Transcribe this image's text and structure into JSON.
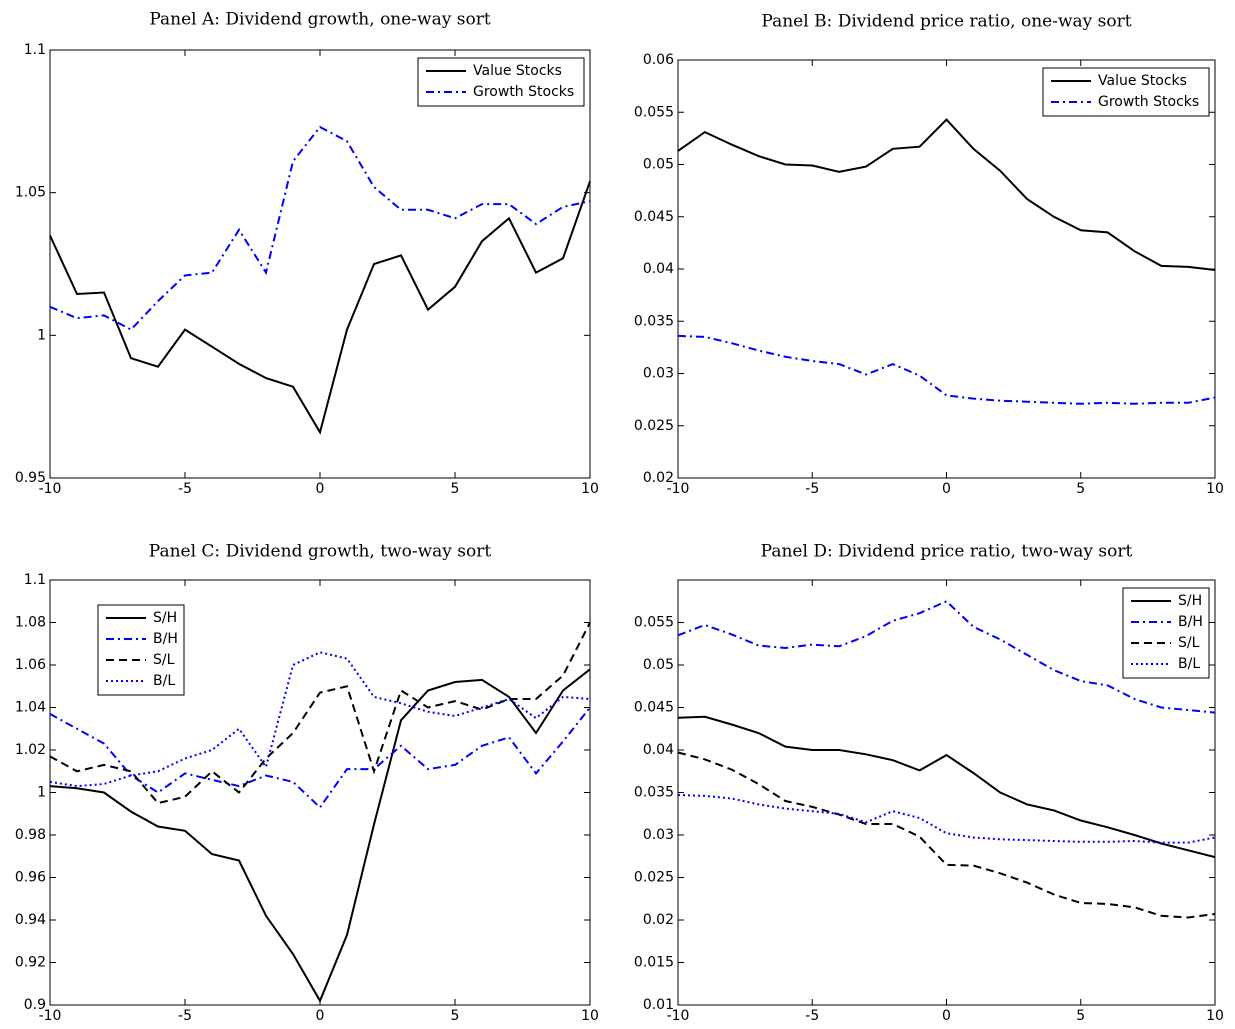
{
  "chart_data": [
    {
      "type": "line",
      "title": "Panel A: Dividend growth, one-way sort",
      "x": [
        -10,
        -9,
        -8,
        -7,
        -6,
        -5,
        -4,
        -3,
        -2,
        -1,
        0,
        1,
        2,
        3,
        4,
        5,
        6,
        7,
        8,
        9,
        10
      ],
      "xlim": [
        -10,
        10
      ],
      "xticks": [
        -10,
        -5,
        0,
        5,
        10
      ],
      "ylim": [
        0.95,
        1.1
      ],
      "yticks": [
        0.95,
        1,
        1.05,
        1.1
      ],
      "legend": "upper right",
      "series": [
        {
          "name": "Value Stocks",
          "color": "#000000",
          "style": "solid",
          "values": [
            1.035,
            1.0145,
            1.015,
            0.992,
            0.989,
            1.002,
            0.996,
            0.99,
            0.985,
            0.982,
            0.966,
            1.002,
            1.025,
            1.028,
            1.009,
            1.017,
            1.033,
            1.041,
            1.022,
            1.027,
            1.054
          ]
        },
        {
          "name": "Growth Stocks",
          "color": "#0000ff",
          "style": "dashdot",
          "values": [
            1.01,
            1.006,
            1.007,
            1.002,
            1.012,
            1.021,
            1.022,
            1.037,
            1.022,
            1.061,
            1.073,
            1.068,
            1.052,
            1.044,
            1.044,
            1.041,
            1.046,
            1.046,
            1.039,
            1.045,
            1.047
          ]
        }
      ]
    },
    {
      "type": "line",
      "title": "Panel B: Dividend price ratio, one-way sort",
      "x": [
        -10,
        -9,
        -8,
        -7,
        -6,
        -5,
        -4,
        -3,
        -2,
        -1,
        0,
        1,
        2,
        3,
        4,
        5,
        6,
        7,
        8,
        9,
        10
      ],
      "xlim": [
        -10,
        10
      ],
      "xticks": [
        -10,
        -5,
        0,
        5,
        10
      ],
      "ylim": [
        0.02,
        0.06
      ],
      "yticks": [
        0.02,
        0.025,
        0.03,
        0.035,
        0.04,
        0.045,
        0.05,
        0.055,
        0.06
      ],
      "legend": "upper right",
      "series": [
        {
          "name": "Value Stocks",
          "color": "#000000",
          "style": "solid",
          "values": [
            0.0513,
            0.0531,
            0.0519,
            0.0508,
            0.05,
            0.0499,
            0.0493,
            0.0498,
            0.0515,
            0.0517,
            0.0543,
            0.0515,
            0.0494,
            0.0467,
            0.045,
            0.0437,
            0.0435,
            0.0417,
            0.0403,
            0.0402,
            0.0399
          ]
        },
        {
          "name": "Growth Stocks",
          "color": "#0000ff",
          "style": "dashdot",
          "values": [
            0.0336,
            0.0335,
            0.0329,
            0.0322,
            0.0316,
            0.0312,
            0.0309,
            0.0299,
            0.0309,
            0.0298,
            0.0279,
            0.0276,
            0.0274,
            0.0273,
            0.0272,
            0.0271,
            0.0272,
            0.0271,
            0.0272,
            0.0272,
            0.0277
          ]
        }
      ]
    },
    {
      "type": "line",
      "title": "Panel C: Dividend growth, two-way sort",
      "x": [
        -10,
        -9,
        -8,
        -7,
        -6,
        -5,
        -4,
        -3,
        -2,
        -1,
        0,
        1,
        2,
        3,
        4,
        5,
        6,
        7,
        8,
        9,
        10
      ],
      "xlim": [
        -10,
        10
      ],
      "xticks": [
        -10,
        -5,
        0,
        5,
        10
      ],
      "ylim": [
        0.9,
        1.1
      ],
      "yticks": [
        0.9,
        0.92,
        0.94,
        0.96,
        0.98,
        1,
        1.02,
        1.04,
        1.06,
        1.08,
        1.1
      ],
      "legend": "upper left",
      "series": [
        {
          "name": "S/H",
          "color": "#000000",
          "style": "solid",
          "values": [
            1.003,
            1.002,
            1.0,
            0.991,
            0.984,
            0.982,
            0.971,
            0.968,
            0.942,
            0.924,
            0.902,
            0.933,
            0.985,
            1.034,
            1.048,
            1.052,
            1.053,
            1.045,
            1.028,
            1.048,
            1.058
          ]
        },
        {
          "name": "B/H",
          "color": "#0000ff",
          "style": "dashdot",
          "values": [
            1.037,
            1.03,
            1.023,
            1.008,
            1.0,
            1.009,
            1.006,
            1.003,
            1.008,
            1.005,
            0.993,
            1.011,
            1.011,
            1.022,
            1.011,
            1.013,
            1.022,
            1.026,
            1.009,
            1.024,
            1.04
          ]
        },
        {
          "name": "S/L",
          "color": "#000000",
          "style": "dashed",
          "values": [
            1.017,
            1.01,
            1.013,
            1.01,
            0.995,
            0.998,
            1.01,
            1.0,
            1.016,
            1.028,
            1.047,
            1.05,
            1.01,
            1.048,
            1.04,
            1.043,
            1.039,
            1.044,
            1.044,
            1.055,
            1.08
          ]
        },
        {
          "name": "B/L",
          "color": "#0000ff",
          "style": "dotted",
          "values": [
            1.005,
            1.003,
            1.004,
            1.008,
            1.01,
            1.016,
            1.02,
            1.03,
            1.012,
            1.06,
            1.066,
            1.063,
            1.045,
            1.042,
            1.038,
            1.036,
            1.04,
            1.044,
            1.035,
            1.045,
            1.044
          ]
        }
      ]
    },
    {
      "type": "line",
      "title": "Panel D: Dividend price ratio, two-way sort",
      "x": [
        -10,
        -9,
        -8,
        -7,
        -6,
        -5,
        -4,
        -3,
        -2,
        -1,
        0,
        1,
        2,
        3,
        4,
        5,
        6,
        7,
        8,
        9,
        10
      ],
      "xlim": [
        -10,
        10
      ],
      "xticks": [
        -10,
        -5,
        0,
        5,
        10
      ],
      "ylim": [
        0.01,
        0.06
      ],
      "yticks": [
        0.01,
        0.015,
        0.02,
        0.025,
        0.03,
        0.035,
        0.04,
        0.045,
        0.05,
        0.055
      ],
      "legend": "upper right",
      "series": [
        {
          "name": "S/H",
          "color": "#000000",
          "style": "solid",
          "values": [
            0.0438,
            0.0439,
            0.043,
            0.042,
            0.0404,
            0.04,
            0.04,
            0.0395,
            0.0388,
            0.0376,
            0.0394,
            0.0373,
            0.035,
            0.0336,
            0.0329,
            0.0317,
            0.0309,
            0.03,
            0.029,
            0.0282,
            0.0274
          ]
        },
        {
          "name": "B/H",
          "color": "#0000ff",
          "style": "dashdot",
          "values": [
            0.0535,
            0.0547,
            0.0536,
            0.0523,
            0.052,
            0.0524,
            0.0522,
            0.0534,
            0.0552,
            0.0561,
            0.0575,
            0.0545,
            0.053,
            0.0512,
            0.0494,
            0.0481,
            0.0476,
            0.046,
            0.045,
            0.0447,
            0.0444
          ]
        },
        {
          "name": "S/L",
          "color": "#000000",
          "style": "dashed",
          "values": [
            0.0397,
            0.0389,
            0.0377,
            0.036,
            0.034,
            0.0333,
            0.0324,
            0.0313,
            0.0313,
            0.0298,
            0.0265,
            0.0264,
            0.0255,
            0.0244,
            0.023,
            0.022,
            0.0219,
            0.0215,
            0.0205,
            0.0203,
            0.0207
          ]
        },
        {
          "name": "B/L",
          "color": "#0000ff",
          "style": "dotted",
          "values": [
            0.0347,
            0.0346,
            0.0343,
            0.0336,
            0.0331,
            0.0328,
            0.0325,
            0.0315,
            0.0328,
            0.032,
            0.0302,
            0.0297,
            0.0295,
            0.0294,
            0.0293,
            0.0292,
            0.0292,
            0.0293,
            0.0291,
            0.0291,
            0.0297
          ]
        }
      ]
    }
  ]
}
